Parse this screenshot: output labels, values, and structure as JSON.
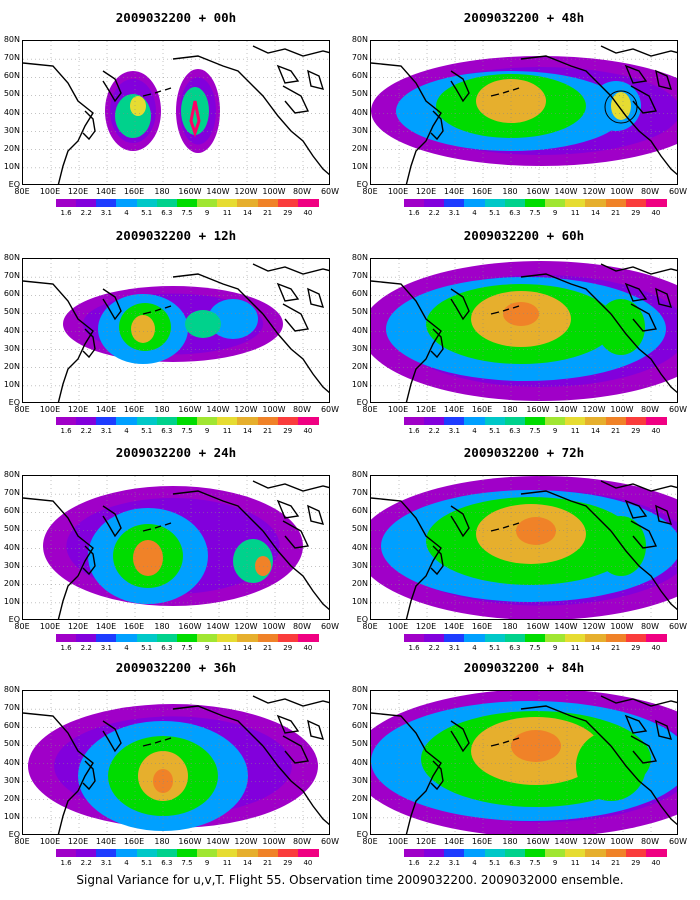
{
  "caption": "Signal Variance for u,v,T. Flight 55. Observation time 2009032200. 2009032000 ensemble.",
  "lat_labels": [
    "80N",
    "70N",
    "60N",
    "50N",
    "40N",
    "30N",
    "20N",
    "10N",
    "EQ"
  ],
  "lon_labels": [
    "80E",
    "100E",
    "120E",
    "140E",
    "160E",
    "180",
    "160W",
    "140W",
    "120W",
    "100W",
    "80W",
    "60W"
  ],
  "contour_levels": [
    "1.6",
    "2.2",
    "3.1",
    "4",
    "5.1",
    "6.3",
    "7.5",
    "9",
    "11",
    "14",
    "21",
    "29",
    "40"
  ],
  "colors": {
    "ramp": [
      "#a000c8",
      "#8200dc",
      "#1e3cff",
      "#00a0ff",
      "#00c8c8",
      "#00d28c",
      "#00dc00",
      "#a0e632",
      "#e6dc32",
      "#e6af2d",
      "#f08228",
      "#fa3c3c",
      "#f00082"
    ],
    "coast": "#000000",
    "highlight": "#ff0066"
  },
  "panels": [
    {
      "title": "2009032200 + 00h",
      "intensity": 0
    },
    {
      "title": "2009032200 + 12h",
      "intensity": 1
    },
    {
      "title": "2009032200 + 24h",
      "intensity": 2
    },
    {
      "title": "2009032200 + 36h",
      "intensity": 3
    },
    {
      "title": "2009032200 + 48h",
      "intensity": 4
    },
    {
      "title": "2009032200 + 60h",
      "intensity": 5
    },
    {
      "title": "2009032200 + 72h",
      "intensity": 6
    },
    {
      "title": "2009032200 + 84h",
      "intensity": 7
    }
  ]
}
